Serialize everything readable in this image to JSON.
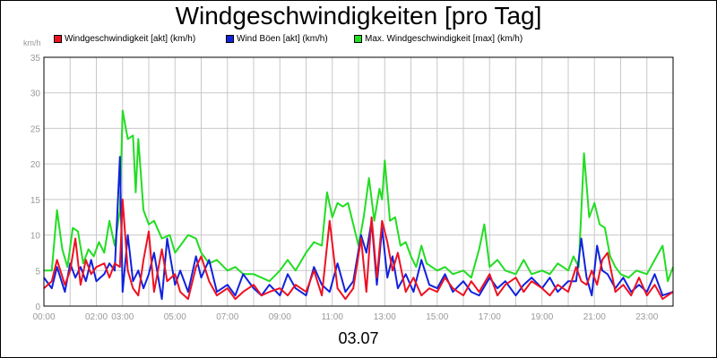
{
  "title": "Windgeschwindigkeiten [pro Tag]",
  "unit_label": "km/h",
  "date_label": "03.07",
  "chart_data": {
    "type": "line",
    "title": "Windgeschwindigkeiten [pro Tag]",
    "ylabel": "km/h",
    "xlabel": "03.07",
    "ylim": [
      0,
      35
    ],
    "xlim": [
      0,
      24
    ],
    "yticks": [
      "0",
      "5",
      "10",
      "15",
      "20",
      "25",
      "30",
      "35"
    ],
    "xticks": [
      "00:00",
      "02:00",
      "03:00",
      "05:00",
      "07:00",
      "09:00",
      "11:00",
      "13:00",
      "15:00",
      "17:00",
      "19:00",
      "21:00",
      "23:00"
    ],
    "xtick_hours": [
      0,
      2,
      3,
      5,
      7,
      9,
      11,
      13,
      15,
      17,
      19,
      21,
      23
    ],
    "grid": true,
    "legend_position": "top-left",
    "series": [
      {
        "name": "Windgeschwindigkeit [akt] (km/h)",
        "color": "#ee1122",
        "x": [
          0,
          0.3,
          0.5,
          0.8,
          1.0,
          1.2,
          1.4,
          1.6,
          1.8,
          2.0,
          2.3,
          2.5,
          2.7,
          2.9,
          3.0,
          3.2,
          3.4,
          3.6,
          3.8,
          4.0,
          4.2,
          4.5,
          4.7,
          5.0,
          5.2,
          5.5,
          5.8,
          6.0,
          6.3,
          6.6,
          7.0,
          7.3,
          7.6,
          8.0,
          8.3,
          8.6,
          9.0,
          9.3,
          9.6,
          10.0,
          10.3,
          10.6,
          10.9,
          11.2,
          11.5,
          11.8,
          12.1,
          12.3,
          12.5,
          12.7,
          12.9,
          13.1,
          13.3,
          13.5,
          13.8,
          14.1,
          14.4,
          14.7,
          15.0,
          15.3,
          15.6,
          16.0,
          16.3,
          16.6,
          17.0,
          17.3,
          17.6,
          18.0,
          18.3,
          18.6,
          19.0,
          19.3,
          19.6,
          20.0,
          20.3,
          20.5,
          20.7,
          20.9,
          21.1,
          21.3,
          21.5,
          21.8,
          22.1,
          22.4,
          22.7,
          23.0,
          23.3,
          23.6,
          24.0
        ],
        "y": [
          2.5,
          3.5,
          6.5,
          3.0,
          5.0,
          9.5,
          3.0,
          6.5,
          4.5,
          5.5,
          6.0,
          4.0,
          6.0,
          5.5,
          15.0,
          5.0,
          2.5,
          1.5,
          6.5,
          10.5,
          2.0,
          8.0,
          3.5,
          4.5,
          2.0,
          1.0,
          5.5,
          7.0,
          3.5,
          1.5,
          2.5,
          1.0,
          2.0,
          3.0,
          1.5,
          2.0,
          2.5,
          1.5,
          3.0,
          2.0,
          5.0,
          1.5,
          12.0,
          2.5,
          1.0,
          2.5,
          9.5,
          2.0,
          12.5,
          4.0,
          12.0,
          9.0,
          5.0,
          7.5,
          2.0,
          4.0,
          1.5,
          2.5,
          2.0,
          4.0,
          2.5,
          1.5,
          3.5,
          2.0,
          4.5,
          1.5,
          3.0,
          4.0,
          2.0,
          3.5,
          2.5,
          1.5,
          3.0,
          2.0,
          5.5,
          3.5,
          3.0,
          5.0,
          3.0,
          6.5,
          7.5,
          2.0,
          3.0,
          1.5,
          4.0,
          1.5,
          3.0,
          1.0,
          2.0
        ]
      },
      {
        "name": "Wind Böen [akt] (km/h)",
        "color": "#1122dd",
        "x": [
          0,
          0.3,
          0.5,
          0.8,
          1.0,
          1.2,
          1.4,
          1.6,
          1.8,
          2.0,
          2.3,
          2.5,
          2.7,
          2.9,
          3.0,
          3.2,
          3.4,
          3.6,
          3.8,
          4.0,
          4.2,
          4.5,
          4.7,
          5.0,
          5.2,
          5.5,
          5.8,
          6.0,
          6.3,
          6.6,
          7.0,
          7.3,
          7.6,
          8.0,
          8.3,
          8.6,
          9.0,
          9.3,
          9.6,
          10.0,
          10.3,
          10.6,
          10.9,
          11.2,
          11.5,
          11.8,
          12.1,
          12.3,
          12.5,
          12.7,
          12.9,
          13.1,
          13.3,
          13.5,
          13.8,
          14.1,
          14.4,
          14.7,
          15.0,
          15.3,
          15.6,
          16.0,
          16.3,
          16.6,
          17.0,
          17.3,
          17.6,
          18.0,
          18.3,
          18.6,
          19.0,
          19.3,
          19.6,
          20.0,
          20.3,
          20.5,
          20.7,
          20.9,
          21.1,
          21.3,
          21.5,
          21.8,
          22.1,
          22.4,
          22.7,
          23.0,
          23.3,
          23.6,
          24.0
        ],
        "y": [
          4.0,
          2.5,
          5.5,
          2.0,
          6.0,
          4.0,
          5.5,
          3.5,
          6.5,
          3.5,
          4.5,
          6.0,
          5.0,
          21.0,
          2.0,
          10.0,
          3.5,
          5.0,
          2.5,
          4.5,
          7.5,
          1.0,
          9.5,
          3.0,
          5.0,
          2.0,
          7.0,
          4.0,
          6.5,
          2.0,
          3.0,
          1.5,
          4.5,
          2.5,
          1.5,
          3.0,
          1.5,
          4.5,
          2.5,
          1.5,
          5.5,
          3.0,
          2.0,
          6.0,
          2.0,
          3.5,
          10.0,
          7.5,
          12.0,
          3.0,
          11.0,
          4.0,
          7.0,
          2.5,
          4.5,
          2.0,
          6.5,
          3.0,
          2.5,
          4.5,
          2.0,
          3.5,
          2.0,
          1.5,
          4.0,
          2.5,
          3.5,
          1.5,
          3.0,
          4.0,
          2.5,
          4.0,
          2.0,
          3.5,
          3.5,
          9.5,
          4.0,
          1.5,
          8.5,
          5.0,
          4.5,
          2.5,
          4.0,
          2.0,
          3.0,
          2.0,
          4.5,
          1.5,
          2.0
        ]
      },
      {
        "name": "Max. Windgeschwindigkeit [max] (km/h)",
        "color": "#22dd22",
        "x": [
          0,
          0.3,
          0.5,
          0.7,
          0.9,
          1.1,
          1.3,
          1.5,
          1.7,
          1.9,
          2.1,
          2.3,
          2.5,
          2.7,
          2.9,
          3.0,
          3.2,
          3.4,
          3.5,
          3.6,
          3.8,
          4.0,
          4.2,
          4.5,
          4.8,
          5.0,
          5.2,
          5.5,
          5.8,
          6.0,
          6.3,
          6.6,
          7.0,
          7.3,
          7.6,
          8.0,
          8.3,
          8.6,
          9.0,
          9.3,
          9.6,
          10.0,
          10.3,
          10.6,
          10.8,
          11.0,
          11.2,
          11.4,
          11.6,
          11.8,
          12.0,
          12.2,
          12.4,
          12.6,
          12.8,
          12.9,
          13.0,
          13.2,
          13.4,
          13.6,
          13.8,
          14.0,
          14.2,
          14.4,
          14.6,
          14.8,
          15.0,
          15.3,
          15.6,
          16.0,
          16.3,
          16.6,
          16.8,
          17.0,
          17.3,
          17.6,
          18.0,
          18.3,
          18.6,
          19.0,
          19.3,
          19.6,
          20.0,
          20.2,
          20.4,
          20.6,
          20.8,
          21.0,
          21.2,
          21.4,
          21.6,
          21.8,
          22.0,
          22.3,
          22.6,
          23.0,
          23.3,
          23.6,
          23.8,
          24.0
        ],
        "y": [
          5.0,
          5.0,
          13.5,
          8.0,
          5.5,
          11.0,
          10.5,
          6.0,
          8.0,
          7.0,
          9.0,
          7.5,
          12.0,
          8.5,
          13.5,
          27.5,
          23.5,
          24.0,
          16.0,
          23.5,
          13.5,
          11.5,
          12.0,
          9.5,
          10.0,
          7.5,
          8.5,
          10.0,
          9.5,
          7.5,
          6.0,
          6.5,
          5.0,
          5.5,
          4.5,
          4.5,
          4.0,
          3.5,
          5.0,
          6.5,
          5.0,
          7.5,
          9.0,
          8.5,
          16.0,
          12.5,
          14.5,
          14.0,
          14.5,
          11.5,
          8.5,
          12.5,
          18.0,
          12.0,
          16.5,
          15.0,
          20.5,
          12.0,
          12.5,
          8.5,
          9.0,
          7.0,
          5.5,
          8.5,
          6.0,
          5.5,
          5.0,
          5.5,
          4.5,
          5.0,
          4.0,
          8.0,
          11.5,
          5.5,
          6.5,
          5.0,
          4.5,
          6.5,
          4.5,
          5.0,
          4.5,
          6.0,
          5.0,
          7.0,
          5.5,
          21.5,
          12.5,
          14.5,
          11.5,
          11.0,
          7.0,
          5.5,
          4.5,
          4.0,
          5.0,
          4.5,
          6.5,
          8.5,
          3.5,
          5.5
        ]
      }
    ]
  }
}
